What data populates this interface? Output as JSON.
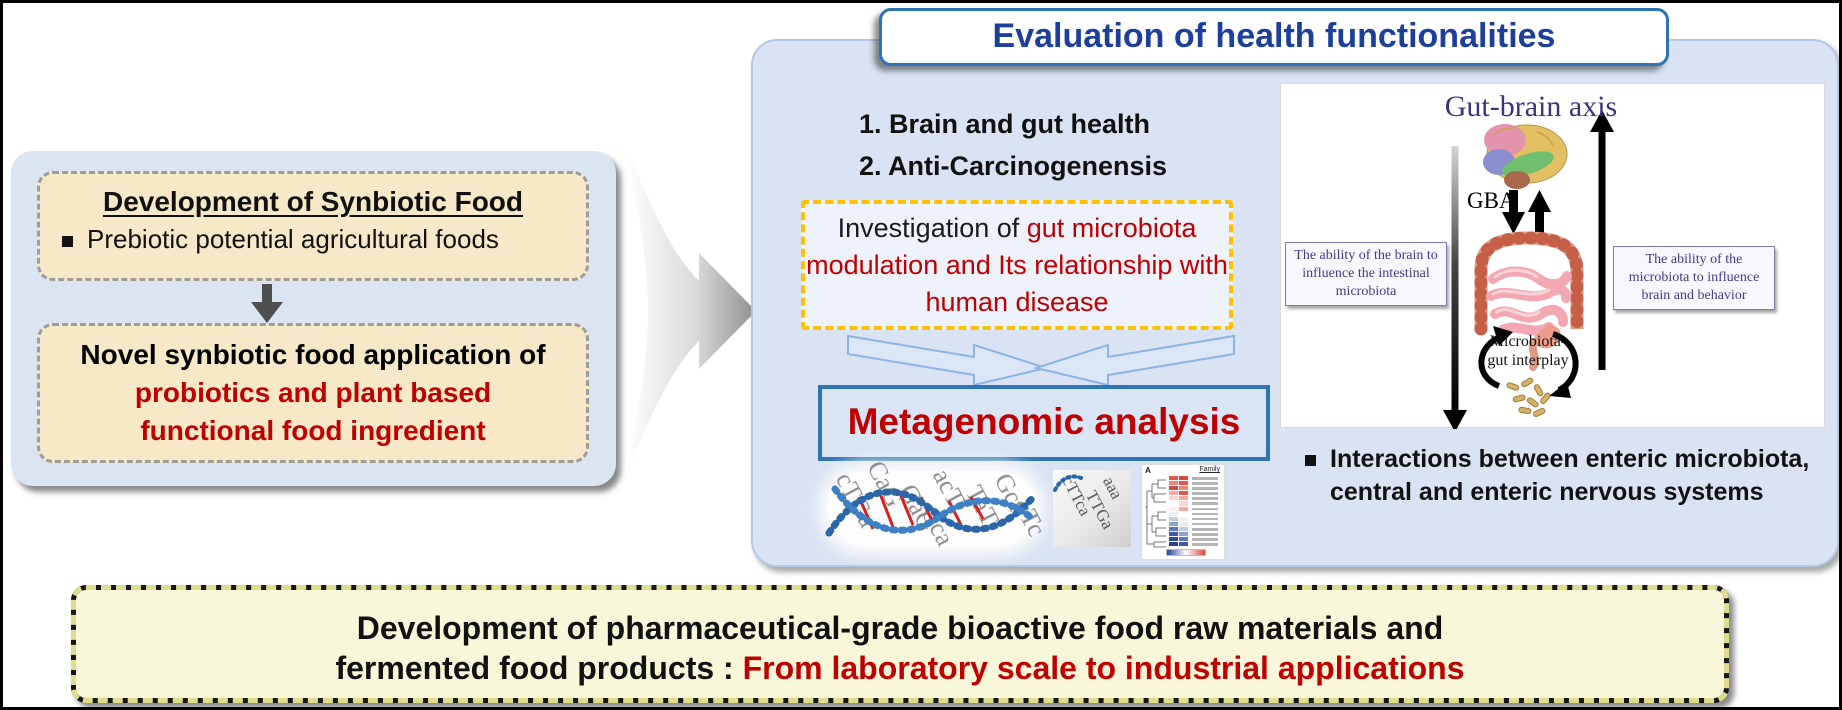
{
  "colors": {
    "accent_blue": "#2e74b5",
    "title_blue": "#1b3f9b",
    "dark_red": "#c00000",
    "panel_blue": "#d9e3f3",
    "tan_box": "#f7e9c8",
    "yellow_border": "#ffc000",
    "purple_text": "#473a8c",
    "banner_cream": "#f8f7da"
  },
  "left_flow": {
    "box1_title": "Development of Synbiotic Food",
    "box1_bullet": "Prebiotic potential agricultural foods",
    "box2_line1": "Novel synbiotic food application of",
    "box2_line2": "probiotics and plant based",
    "box2_line3": "functional food ingredient"
  },
  "evaluation": {
    "title": "Evaluation of health functionalities",
    "item1": "1. Brain and gut health",
    "item2": "2. Anti-Carcinogenensis",
    "inv_black": "Investigation of ",
    "inv_red": "gut microbiota modulation and Its relationship with human disease",
    "metagenomic": "Metagenomic analysis"
  },
  "gut_brain": {
    "title": "Gut-brain axis",
    "gba_label": "GBA",
    "left_caption": "The ability of the brain to influence the intestinal microbiota",
    "right_caption": "The ability of the microbiota to influence brain and behavior",
    "interplay_line1": "Microbiota-",
    "interplay_line2": "gut interplay",
    "bullet": "Interactions between enteric microbiota, central and enteric nervous systems"
  },
  "banner": {
    "line1": "Development of pharmaceutical-grade bioactive food raw materials and",
    "line2_black": "fermented food products : ",
    "line2_red": "From laboratory scale to industrial applications"
  },
  "dna_image": {
    "letters": [
      "cTGa",
      "CaG",
      "GaG",
      "acT",
      "TaT",
      "Cca",
      "Gct",
      "cTc"
    ]
  },
  "seq_image": {
    "letters": [
      "cTTca",
      "TTGa",
      "aaa"
    ]
  },
  "heatmap": {
    "corner_label": "A",
    "header": "Family",
    "rows": [
      [
        "#e4574f",
        "#d94840"
      ],
      [
        "#ef837c",
        "#e4574f"
      ],
      [
        "#d94840",
        "#ef837c"
      ],
      [
        "#f5a9a3",
        "#e4574f"
      ],
      [
        "#fbd3d0",
        "#f5a9a3"
      ],
      [
        "#ffffff",
        "#fbd3d0"
      ],
      [
        "#fdecea",
        "#f5a9a3"
      ],
      [
        "#e8ecf6",
        "#ffffff"
      ],
      [
        "#c3cbe8",
        "#fdecea"
      ],
      [
        "#8fa0d4",
        "#e8ecf6"
      ],
      [
        "#5d74c0",
        "#c3cbe8"
      ],
      [
        "#3f57b2",
        "#8fa0d4"
      ],
      [
        "#33489f",
        "#5d74c0"
      ],
      [
        "#2b3f93",
        "#3f57b2"
      ]
    ]
  }
}
